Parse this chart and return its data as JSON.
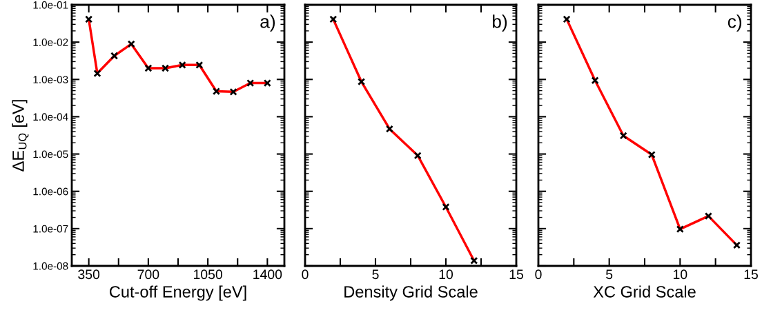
{
  "chart_data": [
    {
      "type": "line",
      "xlabel": "Cut-off Energy [eV]",
      "ylabel": "ΔE$_{UQ}$ [eV]",
      "annotations": [
        "a)"
      ],
      "log": "y",
      "marker": "cross",
      "line_style": "solid",
      "x": [
        350,
        400,
        500,
        600,
        700,
        800,
        900,
        1000,
        1100,
        1200,
        1300,
        1400
      ],
      "series": [
        {
          "color": "#ff0000",
          "values": [
            0.041,
            0.00145,
            0.0043,
            0.0089,
            0.002,
            0.002,
            0.00244,
            0.00244,
            0.00048,
            0.000465,
            0.0008,
            0.0008
          ]
        }
      ],
      "xlim": [
        250,
        1500
      ],
      "xticks": [
        350,
        {
          "value": 525,
          "label": null
        },
        700,
        {
          "value": 875,
          "label": null
        },
        1050,
        {
          "value": 1225,
          "label": null
        },
        1400
      ],
      "ylim": [
        1e-08,
        0.1
      ],
      "yticks": [
        {
          "value": 1e-08,
          "label": "1.0e-08"
        },
        {
          "value": 1e-07,
          "label": "1.0e-07"
        },
        {
          "value": 1e-06,
          "label": "1.0e-06"
        },
        {
          "value": 1e-05,
          "label": "1.0e-05"
        },
        {
          "value": 0.0001,
          "label": "1.0e-04"
        },
        {
          "value": 0.001,
          "label": "1.0e-03"
        },
        {
          "value": 0.01,
          "label": "1.0e-02"
        },
        {
          "value": 0.1,
          "label": "1.0e-01"
        }
      ]
    },
    {
      "type": "line",
      "xlabel": "Density Grid Scale",
      "annotations": [
        "b)"
      ],
      "log": "y",
      "marker": "cross",
      "line_style": "solid",
      "tick_labels": "x",
      "x": [
        2,
        4,
        6,
        8,
        10,
        12
      ],
      "series": [
        {
          "color": "#ff0000",
          "values": [
            0.041,
            0.00087,
            4.7e-05,
            9.1e-06,
            3.8e-07,
            1.38e-08
          ]
        }
      ],
      "xlim": [
        0,
        15
      ],
      "xticks": [
        0,
        {
          "value": 2.5,
          "label": null
        },
        5,
        {
          "value": 7.5,
          "label": null
        },
        10,
        {
          "value": 12.5,
          "label": null
        },
        15
      ],
      "ylim": [
        1e-08,
        0.1
      ],
      "yticks": [
        {
          "value": 1e-08,
          "label": null
        },
        {
          "value": 1e-07,
          "label": null
        },
        {
          "value": 1e-06,
          "label": null
        },
        {
          "value": 1e-05,
          "label": null
        },
        {
          "value": 0.0001,
          "label": null
        },
        {
          "value": 0.001,
          "label": null
        },
        {
          "value": 0.01,
          "label": null
        },
        {
          "value": 0.1,
          "label": null
        }
      ]
    },
    {
      "type": "line",
      "xlabel": "XC Grid Scale",
      "annotations": [
        "c)"
      ],
      "log": "y",
      "marker": "cross",
      "line_style": "solid",
      "tick_labels": "x",
      "x": [
        2,
        4,
        6,
        8,
        10,
        12,
        14
      ],
      "series": [
        {
          "color": "#ff0000",
          "values": [
            0.041,
            0.00094,
            3.1e-05,
            9.6e-06,
            9.7e-08,
            2.17e-07,
            3.6e-08
          ]
        }
      ],
      "xlim": [
        0,
        15
      ],
      "xticks": [
        0,
        {
          "value": 2.5,
          "label": null
        },
        5,
        {
          "value": 7.5,
          "label": null
        },
        10,
        {
          "value": 12.5,
          "label": null
        },
        15
      ],
      "ylim": [
        1e-08,
        0.1
      ],
      "yticks": [
        {
          "value": 1e-08,
          "label": null
        },
        {
          "value": 1e-07,
          "label": null
        },
        {
          "value": 1e-06,
          "label": null
        },
        {
          "value": 1e-05,
          "label": null
        },
        {
          "value": 0.0001,
          "label": null
        },
        {
          "value": 0.001,
          "label": null
        },
        {
          "value": 0.01,
          "label": null
        },
        {
          "value": 0.1,
          "label": null
        }
      ]
    }
  ]
}
